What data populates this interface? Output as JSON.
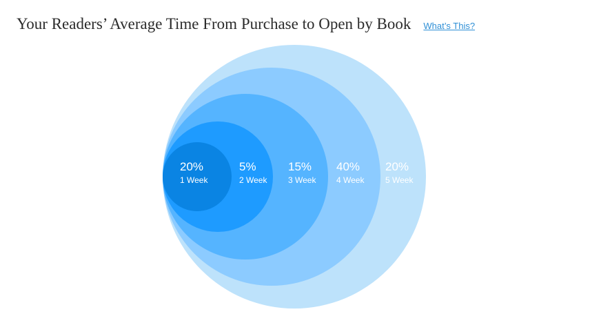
{
  "header": {
    "title": "Your Readers’ Average Time From Purchase to Open by Book",
    "help_link": "What’s This?"
  },
  "chart_data": {
    "type": "nested-circles",
    "title": "Your Readers’ Average Time From Purchase to Open by Book",
    "categories": [
      "1 Week",
      "2 Week",
      "3 Week",
      "4 Week",
      "5 Week"
    ],
    "value_labels": [
      "20%",
      "5%",
      "15%",
      "40%",
      "20%"
    ],
    "values": [
      20,
      5,
      15,
      40,
      20
    ],
    "colors": [
      "#0a84e3",
      "#1e9bff",
      "#55b4ff",
      "#8ccbff",
      "#bde2fb"
    ]
  }
}
